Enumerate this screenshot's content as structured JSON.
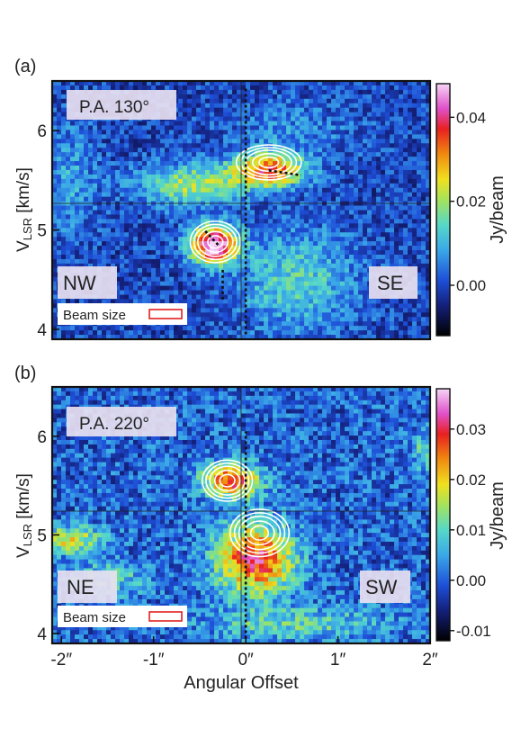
{
  "chart_data": [
    {
      "type": "heatmap",
      "panel_label": "(a)",
      "pa_label": "P.A. 130°",
      "left_label": "NW",
      "right_label": "SE",
      "beam_label": "Beam size",
      "ylabel_main": "V",
      "ylabel_sub": "LSR",
      "ylabel_unit": " [km/s]",
      "xlim": [
        -2.1,
        2.0
      ],
      "ylim": [
        3.9,
        6.5
      ],
      "yticks": [
        4,
        5,
        6
      ],
      "ytick_labels": [
        "4",
        "5",
        "6"
      ],
      "xticks": [
        -2,
        -1,
        0,
        1,
        2
      ],
      "colorbar": {
        "label": "Jy/beam",
        "range": [
          -0.012,
          0.048
        ],
        "ticks": [
          0.0,
          0.02,
          0.04
        ],
        "tick_labels": [
          "0.00",
          "0.02",
          "0.04"
        ]
      },
      "crosshair": {
        "x": 0,
        "y": 5.3
      },
      "background_level": 0.0,
      "emission_blobs": [
        {
          "x": -0.35,
          "y": 4.85,
          "sx": 0.18,
          "sy": 0.13,
          "amp": 0.05
        },
        {
          "x": 0.25,
          "y": 5.6,
          "sx": 0.28,
          "sy": 0.12,
          "amp": 0.035
        },
        {
          "x": -0.6,
          "y": 5.45,
          "sx": 0.4,
          "sy": 0.15,
          "amp": 0.02
        },
        {
          "x": 0.55,
          "y": 4.5,
          "sx": 0.45,
          "sy": 0.35,
          "amp": 0.014
        },
        {
          "x": -1.9,
          "y": 5.5,
          "sx": 0.2,
          "sy": 0.4,
          "amp": 0.008
        },
        {
          "x": 0.5,
          "y": 6.0,
          "sx": 0.5,
          "sy": 0.2,
          "amp": 0.006
        }
      ],
      "contour_peaks": [
        {
          "x": -0.33,
          "y": 4.88,
          "sx": 0.17,
          "sy": 0.13
        },
        {
          "x": 0.25,
          "y": 5.68,
          "sx": 0.22,
          "sy": 0.11
        }
      ],
      "model_curve_label": "",
      "model_curve": [
        [
          -0.25,
          4.3
        ],
        [
          -0.25,
          4.6
        ],
        [
          -0.3,
          4.85
        ],
        [
          -0.45,
          5.0
        ],
        [
          0.0,
          3.95
        ],
        [
          0.0,
          6.45
        ],
        [
          0.25,
          5.6
        ],
        [
          0.6,
          5.55
        ]
      ]
    },
    {
      "type": "heatmap",
      "panel_label": "(b)",
      "pa_label": "P.A. 220°",
      "left_label": "NE",
      "right_label": "SW",
      "beam_label": "Beam size",
      "ylabel_main": "V",
      "ylabel_sub": "LSR",
      "ylabel_unit": " [km/s]",
      "xlim": [
        -2.1,
        2.0
      ],
      "ylim": [
        3.9,
        6.5
      ],
      "yticks": [
        4,
        5,
        6
      ],
      "ytick_labels": [
        "4",
        "5",
        "6"
      ],
      "xticks": [
        -2,
        -1,
        0,
        1,
        2
      ],
      "xtick_labels": [
        "-2″",
        "-1″",
        "0″",
        "1″",
        "2″"
      ],
      "xlabel": "Angular Offset",
      "colorbar": {
        "label": "Jy/beam",
        "range": [
          -0.012,
          0.038
        ],
        "ticks": [
          -0.01,
          0.0,
          0.01,
          0.02,
          0.03
        ],
        "tick_labels": [
          "-0.01",
          "0.00",
          "0.01",
          "0.02",
          "0.03"
        ]
      },
      "crosshair": {
        "x": 0,
        "y": 5.3
      },
      "background_level": 0.0,
      "emission_blobs": [
        {
          "x": 0.1,
          "y": 4.75,
          "sx": 0.3,
          "sy": 0.25,
          "amp": 0.03
        },
        {
          "x": -0.15,
          "y": 5.55,
          "sx": 0.22,
          "sy": 0.12,
          "amp": 0.03
        },
        {
          "x": -1.9,
          "y": 4.95,
          "sx": 0.25,
          "sy": 0.1,
          "amp": 0.018
        },
        {
          "x": -1.5,
          "y": 4.55,
          "sx": 0.3,
          "sy": 0.12,
          "amp": 0.01
        },
        {
          "x": 0.55,
          "y": 4.1,
          "sx": 0.7,
          "sy": 0.12,
          "amp": 0.01
        },
        {
          "x": 1.95,
          "y": 5.85,
          "sx": 0.1,
          "sy": 0.15,
          "amp": 0.01
        }
      ],
      "contour_peaks": [
        {
          "x": -0.2,
          "y": 5.55,
          "sx": 0.17,
          "sy": 0.13
        },
        {
          "x": 0.15,
          "y": 5.02,
          "sx": 0.2,
          "sy": 0.15
        }
      ],
      "model_curve_label": "",
      "model_curve": [
        [
          0.0,
          3.95
        ],
        [
          0.0,
          6.05
        ]
      ]
    }
  ]
}
